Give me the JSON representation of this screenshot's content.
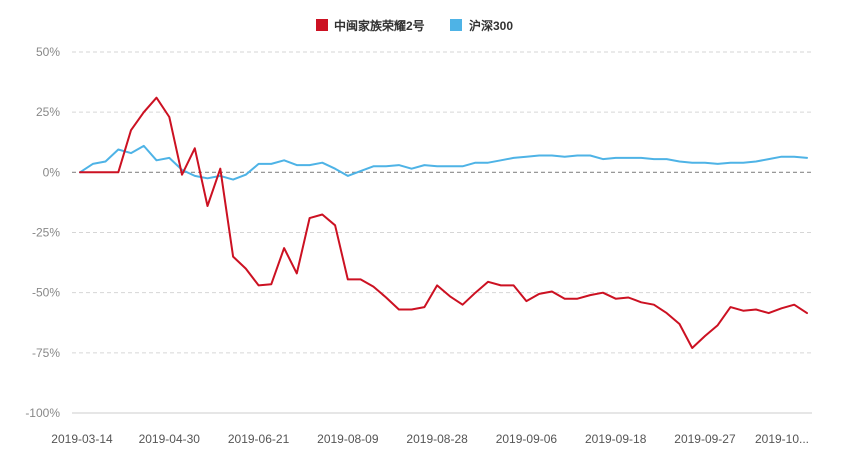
{
  "chart_data": {
    "type": "line",
    "title": "",
    "xlabel": "",
    "ylabel": "",
    "ylim": [
      -100,
      50
    ],
    "y_ticks": [
      50,
      25,
      0,
      -25,
      -50,
      -75,
      -100
    ],
    "y_tick_labels": [
      "50%",
      "25%",
      "0%",
      "-25%",
      "-50%",
      "-75%",
      "-100%"
    ],
    "x_tick_labels": [
      "2019-03-14",
      "2019-04-30",
      "2019-06-21",
      "2019-08-09",
      "2019-08-28",
      "2019-09-06",
      "2019-09-18",
      "2019-09-27",
      "2019-10..."
    ],
    "x_tick_indices": [
      0,
      7,
      14,
      21,
      28,
      35,
      42,
      49,
      55
    ],
    "n_points": 58,
    "grid": true,
    "legend_position": "top-center",
    "series": [
      {
        "name": "中闽家族荣耀2号",
        "color": "#cc1122",
        "values": [
          0,
          0,
          0,
          0,
          17.5,
          25,
          31,
          23,
          -1,
          10,
          -14,
          1.5,
          -35,
          -40,
          -47,
          -46.5,
          -31.5,
          -42,
          -19,
          -17.5,
          -22,
          -44.5,
          -44.5,
          -47.5,
          -52,
          -57,
          -57,
          -56,
          -47,
          -51.5,
          -55,
          -50,
          -45.5,
          -47,
          -47,
          -53.5,
          -50.5,
          -49.5,
          -52.5,
          -52.5,
          -51,
          -50,
          -52.5,
          -52,
          -54,
          -55,
          -58.5,
          -63,
          -73,
          -68,
          -63.5,
          -56,
          -57.5,
          -57,
          -58.5,
          -56.5,
          -55,
          -58.5
        ]
      },
      {
        "name": "沪深300",
        "color": "#4eb3e6",
        "values": [
          0,
          3.5,
          4.5,
          9.5,
          8,
          11,
          5,
          6,
          1,
          -1.5,
          -2.5,
          -1.5,
          -3,
          -1,
          3.5,
          3.5,
          5,
          3,
          3,
          4,
          1.5,
          -1.5,
          0.5,
          2.5,
          2.5,
          3,
          1.5,
          3,
          2.5,
          2.5,
          2.5,
          4,
          4,
          5,
          6,
          6.5,
          7,
          7,
          6.5,
          7,
          7,
          5.5,
          6,
          6,
          6,
          5.5,
          5.5,
          4.5,
          4,
          4,
          3.5,
          4,
          4,
          4.5,
          5.5,
          6.5,
          6.5,
          6
        ]
      }
    ]
  }
}
